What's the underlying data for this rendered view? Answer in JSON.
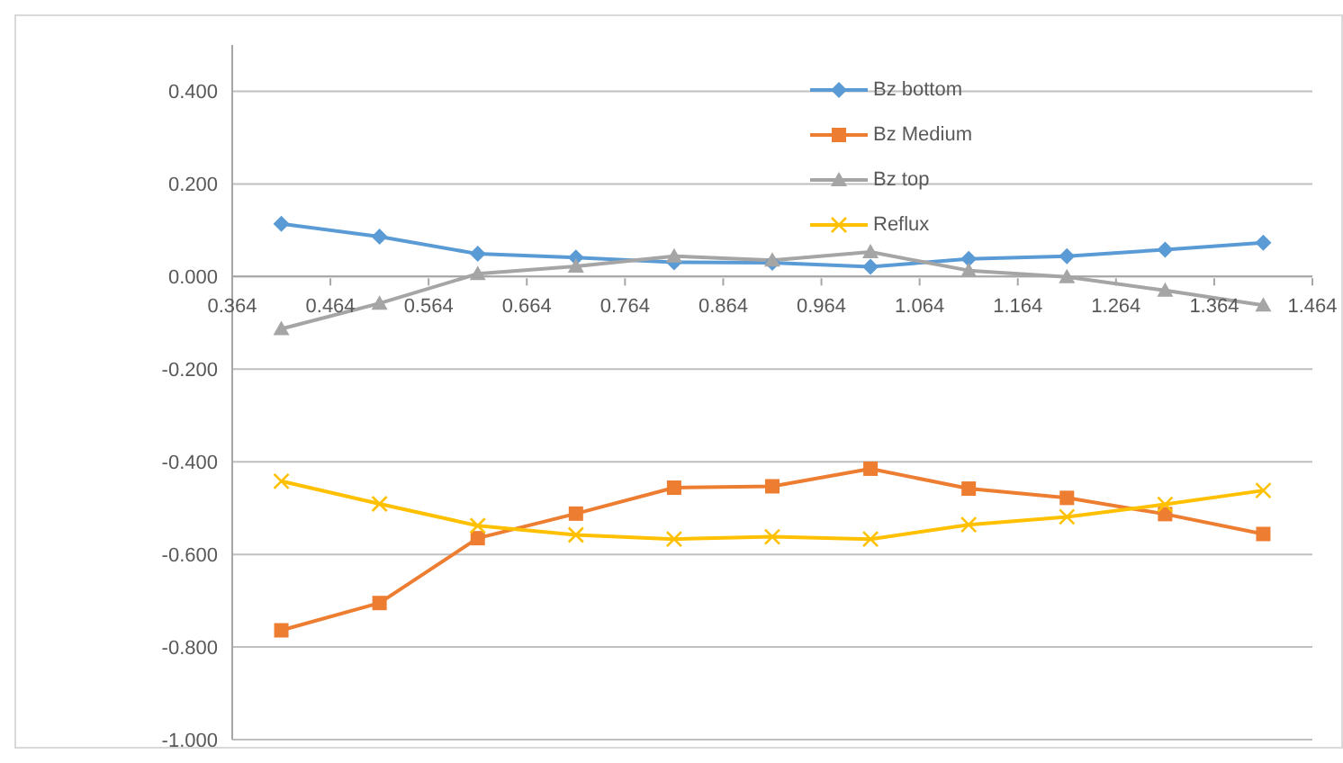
{
  "chart_data": {
    "type": "line",
    "x": [
      0.414,
      0.514,
      0.614,
      0.714,
      0.814,
      0.914,
      1.014,
      1.114,
      1.214,
      1.314,
      1.414
    ],
    "series": [
      {
        "name": "Bz bottom",
        "color": "#5b9bd5",
        "marker": "diamond",
        "values": [
          0.114,
          0.086,
          0.049,
          0.041,
          0.031,
          0.03,
          0.021,
          0.038,
          0.044,
          0.058,
          0.073
        ]
      },
      {
        "name": "Bz Medium",
        "color": "#ed7d31",
        "marker": "square",
        "values": [
          -0.764,
          -0.705,
          -0.565,
          -0.512,
          -0.456,
          -0.453,
          -0.415,
          -0.458,
          -0.478,
          -0.513,
          -0.556
        ]
      },
      {
        "name": "Bz top",
        "color": "#a5a5a5",
        "marker": "triangle",
        "values": [
          -0.113,
          -0.058,
          0.006,
          0.022,
          0.044,
          0.035,
          0.053,
          0.013,
          -0.001,
          -0.03,
          -0.062
        ]
      },
      {
        "name": "Reflux",
        "color": "#ffc000",
        "marker": "cross",
        "values": [
          -0.442,
          -0.491,
          -0.538,
          -0.558,
          -0.567,
          -0.562,
          -0.567,
          -0.536,
          -0.519,
          -0.492,
          -0.462
        ]
      }
    ],
    "xlim": [
      0.364,
      1.464
    ],
    "xticks": [
      0.364,
      0.464,
      0.564,
      0.664,
      0.764,
      0.864,
      0.964,
      1.064,
      1.164,
      1.264,
      1.364,
      1.464
    ],
    "ylim": [
      -1,
      0.5
    ],
    "yticks": [
      {
        "value": -1,
        "label": "-1.000"
      },
      {
        "value": -0.8,
        "label": "-0.800"
      },
      {
        "value": -0.6,
        "label": "-0.600"
      },
      {
        "value": -0.4,
        "label": "-0.400"
      },
      {
        "value": -0.2,
        "label": "-0.200"
      },
      {
        "value": 0,
        "label": "0.000"
      },
      {
        "value": 0.2,
        "label": "0.200"
      },
      {
        "value": 0.4,
        "label": "0.400"
      }
    ],
    "grid": "y",
    "legend": "top"
  }
}
